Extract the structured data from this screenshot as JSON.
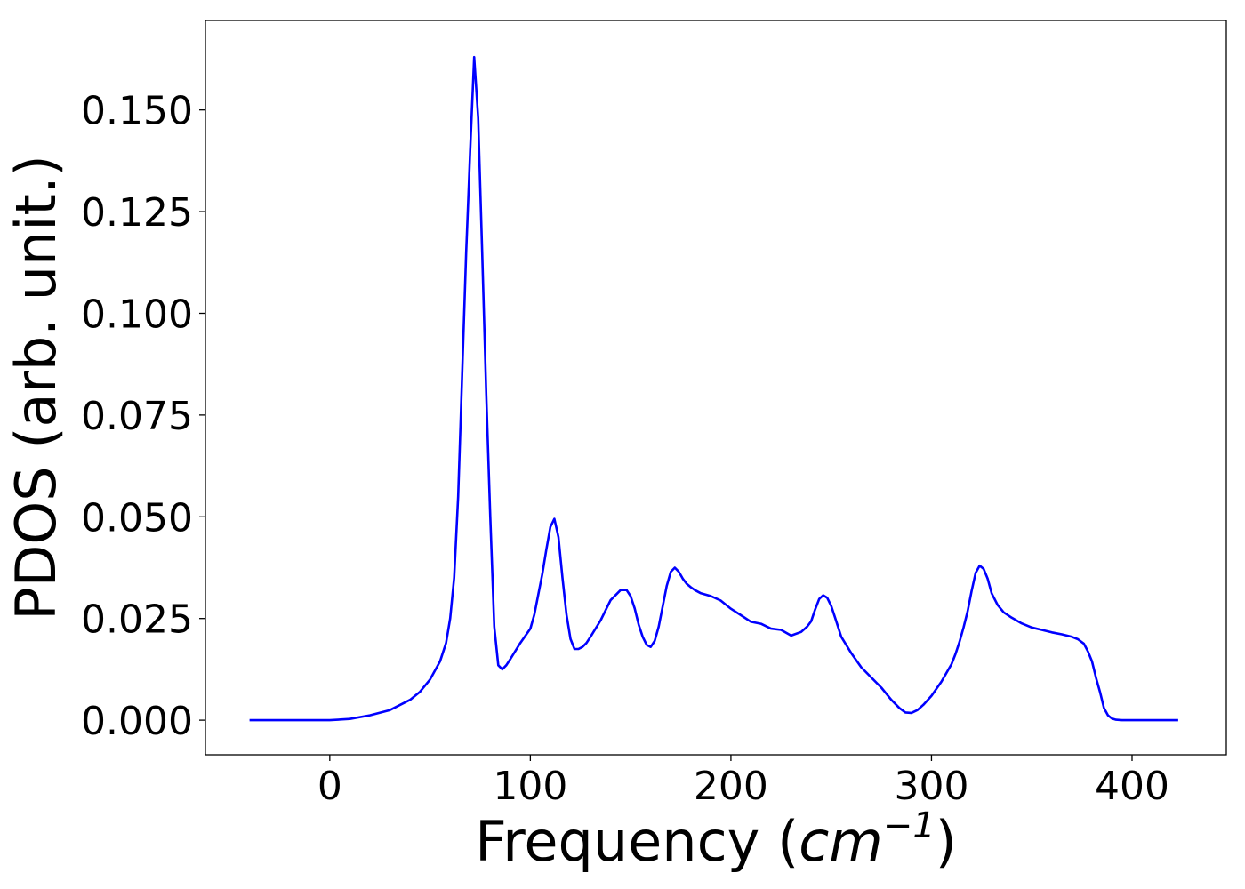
{
  "chart_data": {
    "type": "line",
    "title": "",
    "xlabel_text": "Frequency (",
    "xlabel_unit": "cm",
    "xlabel_exp": "−1",
    "xlabel_close": ")",
    "ylabel": "PDOS (arb. unit.)",
    "xlim": [
      -62,
      447
    ],
    "ylim": [
      -0.0085,
      0.172
    ],
    "xticks": [
      0,
      100,
      200,
      300,
      400
    ],
    "xtick_labels": [
      "0",
      "100",
      "200",
      "300",
      "400"
    ],
    "yticks": [
      0.0,
      0.025,
      0.05,
      0.075,
      0.1,
      0.125,
      0.15
    ],
    "ytick_labels": [
      "0.000",
      "0.025",
      "0.050",
      "0.075",
      "0.100",
      "0.125",
      "0.150"
    ],
    "grid": false,
    "legend": "none",
    "line_color": "#0000ff",
    "series": [
      {
        "x": [
          -40,
          -20,
          0,
          10,
          20,
          30,
          40,
          45,
          50,
          55,
          58,
          60,
          62,
          64,
          66,
          68,
          70,
          72,
          74,
          76,
          78,
          80,
          82,
          84,
          86,
          88,
          90,
          95,
          100,
          102,
          104,
          106,
          108,
          110,
          112,
          114,
          116,
          118,
          120,
          122,
          124,
          126,
          128,
          130,
          135,
          140,
          145,
          148,
          150,
          152,
          154,
          156,
          158,
          160,
          162,
          164,
          166,
          168,
          170,
          172,
          174,
          176,
          178,
          180,
          182,
          185,
          190,
          195,
          200,
          205,
          210,
          215,
          220,
          225,
          230,
          235,
          238,
          240,
          242,
          244,
          246,
          248,
          250,
          252,
          255,
          260,
          265,
          270,
          275,
          280,
          284,
          287,
          290,
          293,
          296,
          300,
          305,
          310,
          312,
          314,
          316,
          318,
          320,
          322,
          324,
          326,
          328,
          330,
          333,
          336,
          340,
          345,
          350,
          355,
          360,
          365,
          370,
          373,
          376,
          378,
          380,
          382,
          384,
          386,
          388,
          390,
          392,
          395,
          400,
          410,
          423
        ],
        "y": [
          0.0,
          0.0,
          0.0,
          0.0003,
          0.0012,
          0.0025,
          0.005,
          0.007,
          0.01,
          0.0145,
          0.019,
          0.025,
          0.035,
          0.055,
          0.085,
          0.115,
          0.14,
          0.163,
          0.148,
          0.115,
          0.08,
          0.05,
          0.023,
          0.0135,
          0.0125,
          0.0135,
          0.015,
          0.019,
          0.0225,
          0.026,
          0.031,
          0.036,
          0.042,
          0.0475,
          0.0495,
          0.045,
          0.035,
          0.026,
          0.02,
          0.0175,
          0.0175,
          0.018,
          0.019,
          0.0205,
          0.0245,
          0.0295,
          0.032,
          0.032,
          0.0305,
          0.0275,
          0.0235,
          0.0205,
          0.0185,
          0.018,
          0.0195,
          0.023,
          0.028,
          0.033,
          0.0365,
          0.0375,
          0.0365,
          0.0348,
          0.0335,
          0.0327,
          0.032,
          0.0312,
          0.0305,
          0.0294,
          0.0274,
          0.0258,
          0.0242,
          0.0237,
          0.0225,
          0.0222,
          0.0208,
          0.0217,
          0.023,
          0.0243,
          0.0272,
          0.0298,
          0.0307,
          0.0301,
          0.0281,
          0.0251,
          0.0205,
          0.0165,
          0.013,
          0.0105,
          0.008,
          0.005,
          0.003,
          0.0019,
          0.0018,
          0.0025,
          0.0038,
          0.006,
          0.0095,
          0.0138,
          0.0163,
          0.0193,
          0.0228,
          0.0268,
          0.0318,
          0.0362,
          0.038,
          0.0372,
          0.0348,
          0.0312,
          0.0283,
          0.0265,
          0.0252,
          0.0238,
          0.0228,
          0.0222,
          0.0216,
          0.0211,
          0.0205,
          0.0199,
          0.0188,
          0.0169,
          0.0145,
          0.0105,
          0.007,
          0.003,
          0.0012,
          0.0004,
          0.0001,
          0.0,
          0.0,
          0.0,
          0.0
        ]
      }
    ]
  }
}
